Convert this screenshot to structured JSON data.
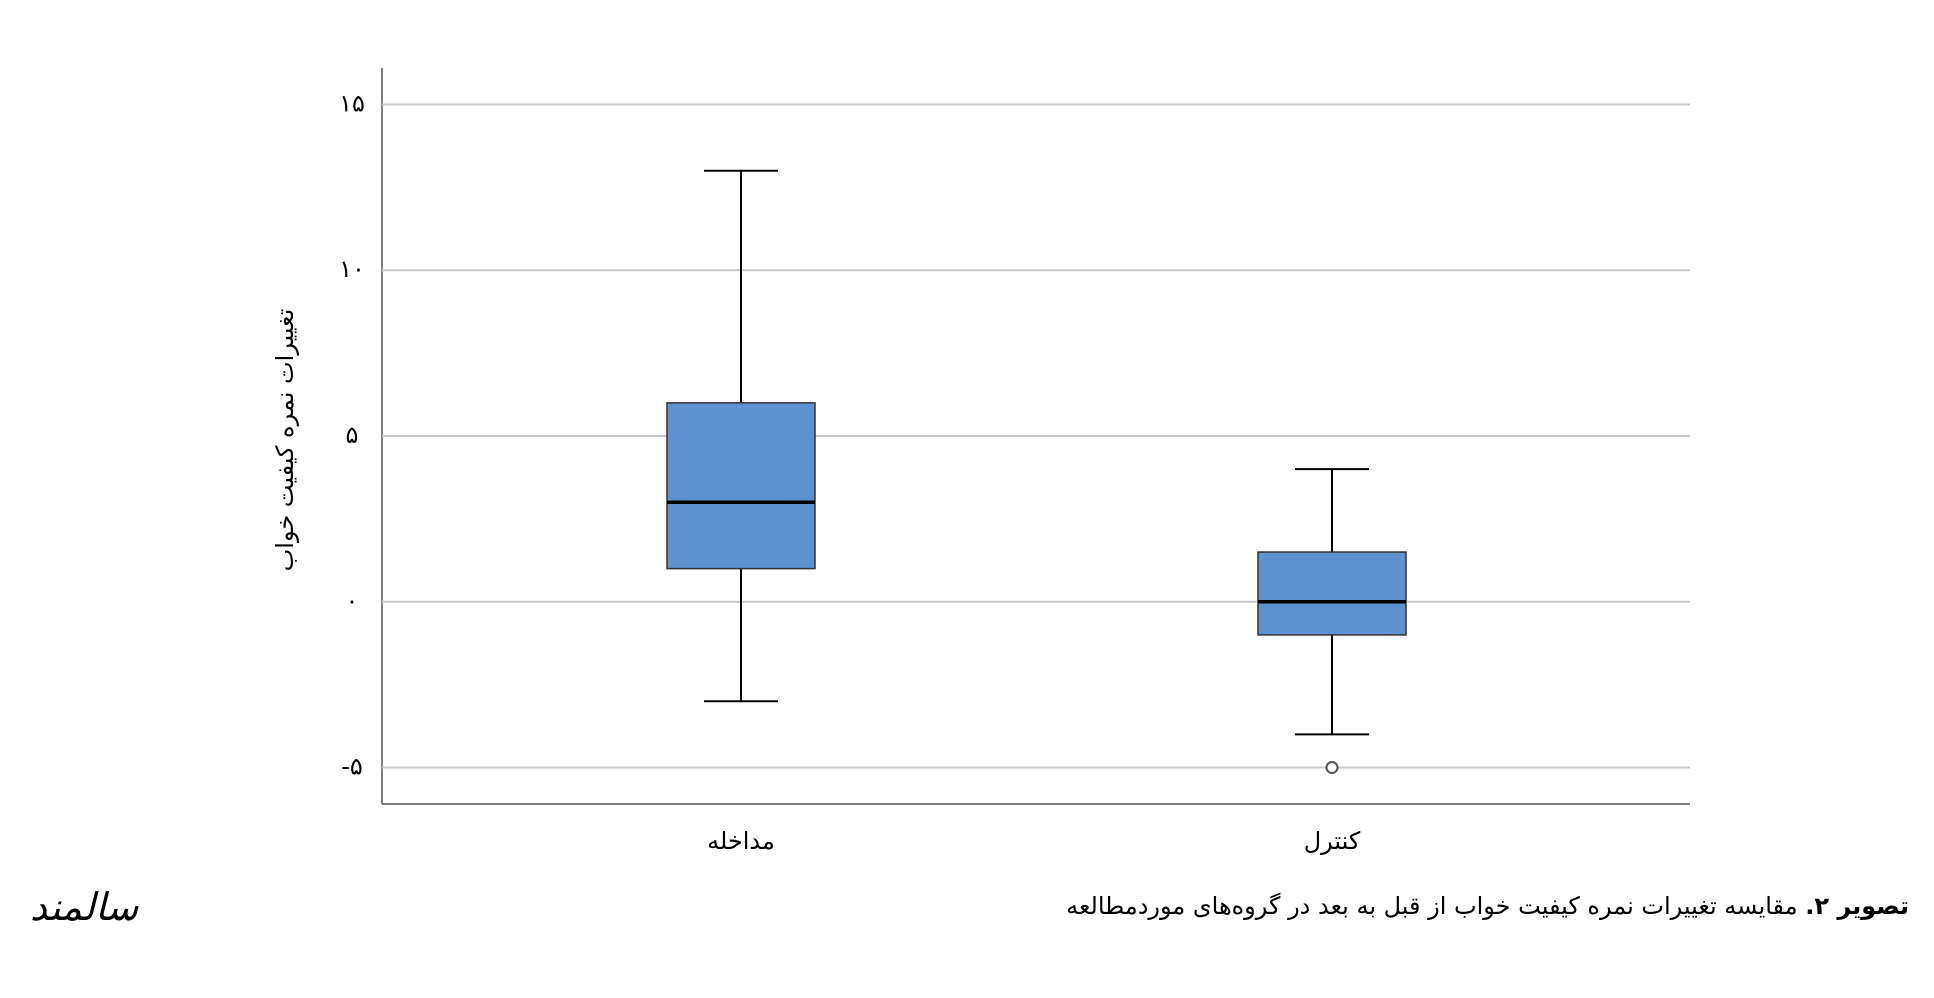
{
  "chart_data": {
    "type": "box",
    "y_label": "تغییرات نمره کیفیت خواب",
    "categories": [
      "مداخله",
      "کنترل"
    ],
    "boxes": [
      {
        "min": -3,
        "q1": 1,
        "median": 3,
        "q3": 6,
        "max": 13
      },
      {
        "min": -4,
        "q1": -1,
        "median": 0,
        "q3": 1.5,
        "max": 4,
        "outliers": [
          -5
        ]
      }
    ],
    "color": "#5d91cf",
    "ylim": [
      -6.1,
      16.1
    ],
    "yticks": [
      {
        "value": -5,
        "label": "-۵"
      },
      {
        "value": 0,
        "label": "۰"
      },
      {
        "value": 5,
        "label": "۵"
      },
      {
        "value": 10,
        "label": "۱۰"
      },
      {
        "value": 15,
        "label": "۱۵"
      }
    ],
    "grid": true
  },
  "caption": {
    "label": "تصویر ۲.",
    "text": "مقایسه تغییرات نمره کیفیت خواب از قبل به بعد در گروه‌های موردمطالعه"
  },
  "logo": "سالمند"
}
